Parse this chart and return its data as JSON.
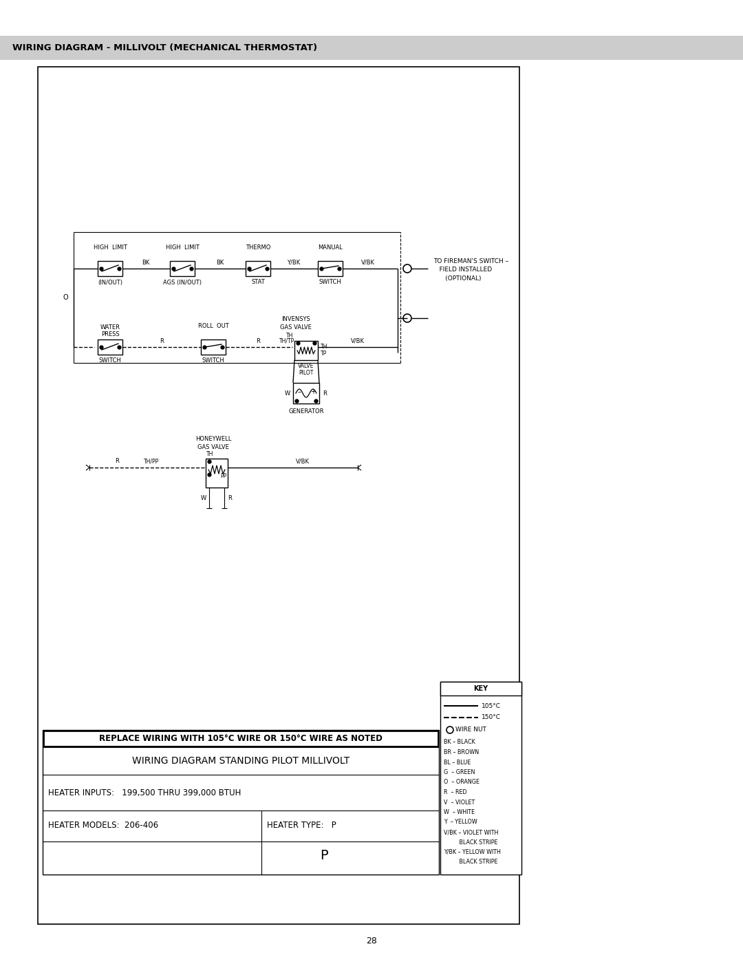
{
  "page_title": "WIRING DIAGRAM - MILLIVOLT (MECHANICAL THERMOSTAT)",
  "page_number": "28",
  "bg_color": "#ffffff",
  "header_bg": "#cccccc",
  "diagram_title": "WIRING DIAGRAM STANDING PILOT MILLIVOLT",
  "heater_inputs": "HEATER INPUTS:   199,500 THRU 399,000 BTUH",
  "heater_models": "HEATER MODELS:  206-406",
  "heater_type": "HEATER TYPE:   P",
  "replace_wiring": "REPLACE WIRING WITH 105°C WIRE OR 150°C WIRE AS NOTED",
  "key_title": "KEY",
  "key_legend": [
    "BK – BLACK",
    "BR – BROWN",
    "BL – BLUE",
    "G  – GREEN",
    "O  – ORANGE",
    "R  – RED",
    "V  – VIOLET",
    "W  – WHITE",
    "Y  – YELLOW",
    "V/BK – VIOLET WITH",
    "         BLACK STRIPE",
    "Y/BK – YELLOW WITH",
    "         BLACK STRIPE"
  ],
  "fireman_line1": "TO FIREMAN'S SWITCH –",
  "fireman_line2": "   FIELD INSTALLED",
  "fireman_line3": "      (OPTIONAL)",
  "invensys_line1": "INVENSYS",
  "invensys_line2": "GAS VALVE",
  "honeywell_line1": "HONEYWELL",
  "honeywell_line2": "GAS VALVE"
}
